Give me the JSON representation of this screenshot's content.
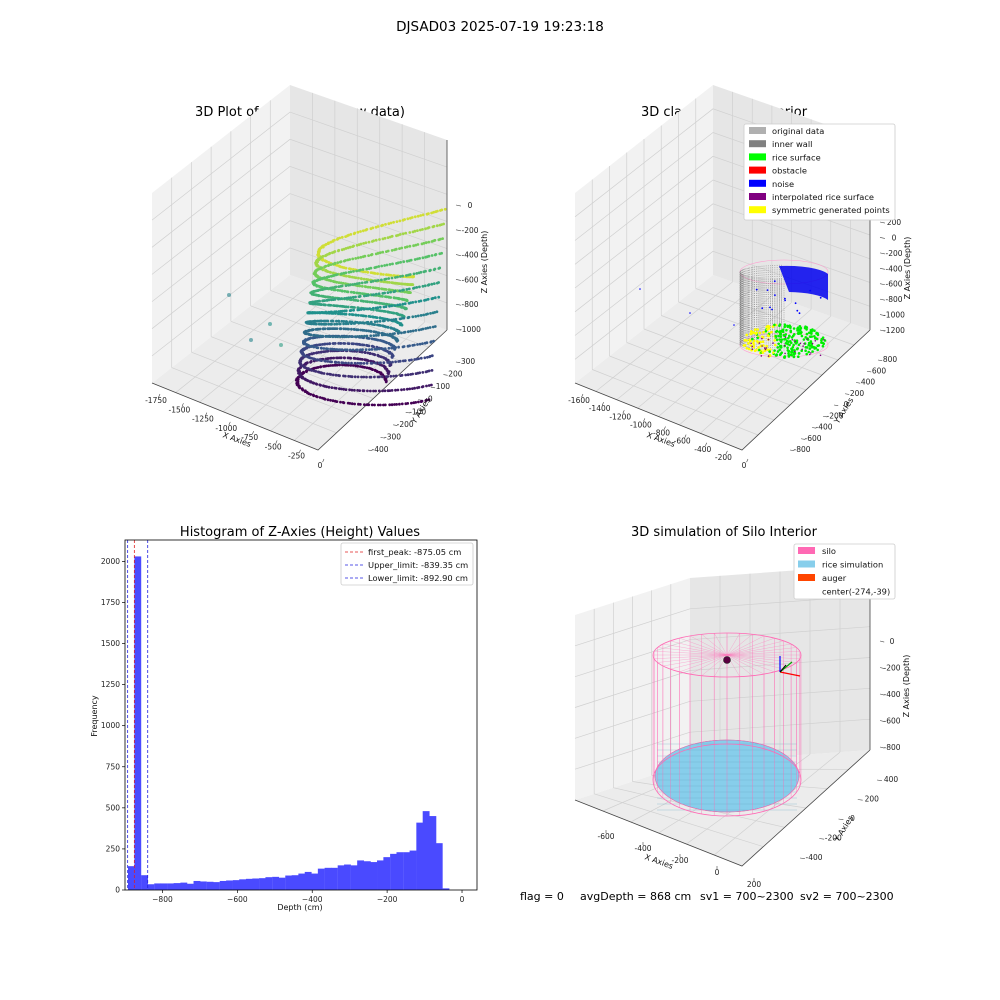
{
  "suptitle": "DJSAD03 2025-07-19 19:23:18",
  "footer": {
    "flag": "flag = 0",
    "avg": "avgDepth = 868 cm",
    "sv1": "sv1 = 700~2300",
    "sv2": "sv2 = 700~2300"
  },
  "chart_data": [
    {
      "type": "scatter",
      "title": "3D Plot of Silo Interior(row data)",
      "xlabel": "X Axies",
      "ylabel": "Y Axies",
      "zlabel": "Z Axies (Depth)",
      "x_ticks": [
        "-1750",
        "-1500",
        "-1250",
        "-1000",
        "-750",
        "-500",
        "-250",
        "0"
      ],
      "y_ticks": [
        "-400",
        "-300",
        "-200",
        "-100",
        "0",
        "100",
        "200",
        "300"
      ],
      "z_ticks": [
        "0",
        "-200",
        "-400",
        "-600",
        "-800",
        "-1000"
      ],
      "colormap": "viridis",
      "grid": true
    },
    {
      "type": "scatter",
      "title": "3D classify of Silo Interior",
      "xlabel": "X Axies",
      "ylabel": "Y Axies",
      "zlabel": "Z Axies (Depth)",
      "x_ticks": [
        "-1600",
        "-1400",
        "-1200",
        "-1000",
        "-800",
        "-600",
        "-400",
        "-200",
        "0"
      ],
      "y_ticks": [
        "-800",
        "-600",
        "-400",
        "-200",
        "0",
        "200",
        "400",
        "600",
        "800"
      ],
      "z_ticks": [
        "200",
        "0",
        "-200",
        "-400",
        "-600",
        "-800",
        "-1000",
        "-1200"
      ],
      "legend": [
        {
          "name": "original data",
          "color": "#b0b0b0"
        },
        {
          "name": "inner wall",
          "color": "#808080"
        },
        {
          "name": "rice surface",
          "color": "#00ff00"
        },
        {
          "name": "obstacle",
          "color": "#ff0000"
        },
        {
          "name": "noise",
          "color": "#0000ff"
        },
        {
          "name": "interpolated rice surface",
          "color": "#800080"
        },
        {
          "name": "symmetric generated points",
          "color": "#ffff00"
        }
      ],
      "legend_position": "top-right",
      "grid": true
    },
    {
      "type": "bar",
      "title": "Histogram of Z-Axies (Height) Values",
      "xlabel": "Depth (cm)",
      "ylabel": "Frequency",
      "xlim": [
        -900,
        40
      ],
      "ylim": [
        0,
        2130
      ],
      "x_ticks": [
        -800,
        -600,
        -400,
        -200,
        0
      ],
      "y_ticks": [
        0,
        250,
        500,
        750,
        1000,
        1250,
        1500,
        1750,
        2000
      ],
      "bin_width": 17.5,
      "bins_start": [
        -892,
        -875,
        -857,
        -840,
        -822,
        -805,
        -787,
        -770,
        -752,
        -735,
        -717,
        -700,
        -682,
        -665,
        -647,
        -630,
        -612,
        -595,
        -577,
        -560,
        -542,
        -525,
        -507,
        -490,
        -472,
        -455,
        -437,
        -420,
        -402,
        -385,
        -367,
        -350,
        -332,
        -315,
        -297,
        -280,
        -262,
        -245,
        -227,
        -210,
        -192,
        -175,
        -157,
        -140,
        -122,
        -105,
        -87,
        -70,
        -52,
        -35,
        -17
      ],
      "values": [
        145,
        2030,
        90,
        35,
        40,
        40,
        40,
        42,
        45,
        38,
        55,
        52,
        50,
        48,
        55,
        58,
        60,
        65,
        68,
        70,
        72,
        78,
        80,
        75,
        88,
        90,
        100,
        110,
        100,
        130,
        135,
        135,
        150,
        155,
        150,
        180,
        175,
        170,
        180,
        200,
        220,
        230,
        230,
        240,
        410,
        480,
        450,
        285,
        10,
        0,
        0
      ],
      "lines": [
        {
          "name": "first_peak: -875.05 cm",
          "x": -875.05,
          "color": "#e02020"
        },
        {
          "name": "Upper_limit: -839.35 cm",
          "x": -839.35,
          "color": "#2020e0"
        },
        {
          "name": "Lower_limit: -892.90 cm",
          "x": -892.9,
          "color": "#2020e0"
        }
      ],
      "bar_color": "#4a4aff",
      "legend_position": "top-right"
    },
    {
      "type": "scatter",
      "title": "3D simulation of Silo Interior",
      "xlabel": "X Axies",
      "ylabel": "Y Axies",
      "zlabel": "Z Axies (Depth)",
      "x_ticks": [
        "-600",
        "-400",
        "-200",
        "0",
        "200"
      ],
      "y_ticks": [
        "-400",
        "-200",
        "0",
        "200",
        "400"
      ],
      "z_ticks": [
        "0",
        "-200",
        "-400",
        "-600",
        "-800"
      ],
      "legend": [
        {
          "name": "silo",
          "color": "#ff69b4"
        },
        {
          "name": "rice simulation",
          "color": "#87ceeb"
        },
        {
          "name": "auger",
          "color": "#ff4500"
        },
        {
          "name": "center(-274,-39)",
          "color": ""
        }
      ],
      "legend_position": "top-right",
      "grid": true
    }
  ]
}
